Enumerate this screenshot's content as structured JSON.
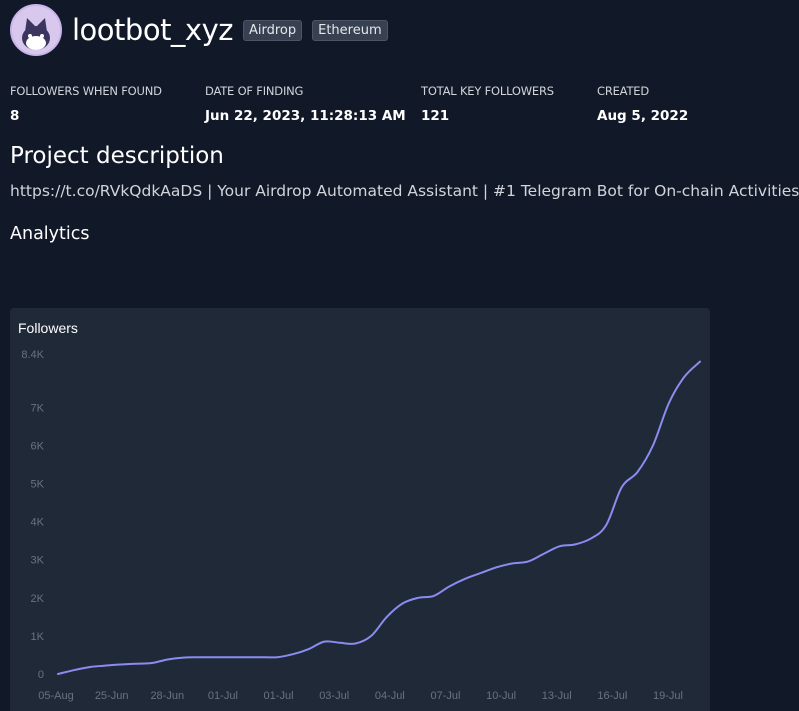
{
  "project": {
    "name": "lootbot_xyz",
    "tags": [
      "Airdrop",
      "Ethereum"
    ]
  },
  "stats": [
    {
      "label": "FOLLOWERS WHEN FOUND",
      "value": "8"
    },
    {
      "label": "DATE OF FINDING",
      "value": "Jun 22, 2023, 11:28:13 AM"
    },
    {
      "label": "TOTAL KEY FOLLOWERS",
      "value": "121"
    },
    {
      "label": "CREATED",
      "value": "Aug 5, 2022"
    }
  ],
  "description": {
    "heading": "Project description",
    "text": "https://t.co/RVkQdkAaDS | Your Airdrop Automated Assistant | #1 Telegram Bot for On-chain Activities"
  },
  "analytics": {
    "heading": "Analytics"
  },
  "chart_data": {
    "type": "line",
    "title": "Followers",
    "ylim": [
      0,
      8400
    ],
    "y_ticks": [
      "0",
      "1K",
      "2K",
      "3K",
      "4K",
      "5K",
      "6K",
      "7K",
      "8.4K"
    ],
    "y_tick_values": [
      0,
      1000,
      2000,
      3000,
      4000,
      5000,
      6000,
      7000,
      8400
    ],
    "x_ticks": [
      "05-Aug",
      "25-Jun",
      "28-Jun",
      "01-Jul",
      "01-Jul",
      "03-Jul",
      "04-Jul",
      "07-Jul",
      "10-Jul",
      "13-Jul",
      "16-Jul",
      "19-Jul"
    ],
    "grid": false,
    "line_color": "#8b8cf0",
    "series": [
      {
        "values": [
          0,
          100,
          180,
          220,
          250,
          270,
          290,
          380,
          430,
          440,
          440,
          440,
          440,
          440,
          440,
          520,
          650,
          850,
          820,
          800,
          1000,
          1500,
          1850,
          2000,
          2050,
          2300,
          2500,
          2650,
          2800,
          2900,
          2950,
          3150,
          3350,
          3400,
          3550,
          3900,
          4900,
          5300,
          6000,
          7100,
          7800,
          8200
        ]
      }
    ]
  }
}
